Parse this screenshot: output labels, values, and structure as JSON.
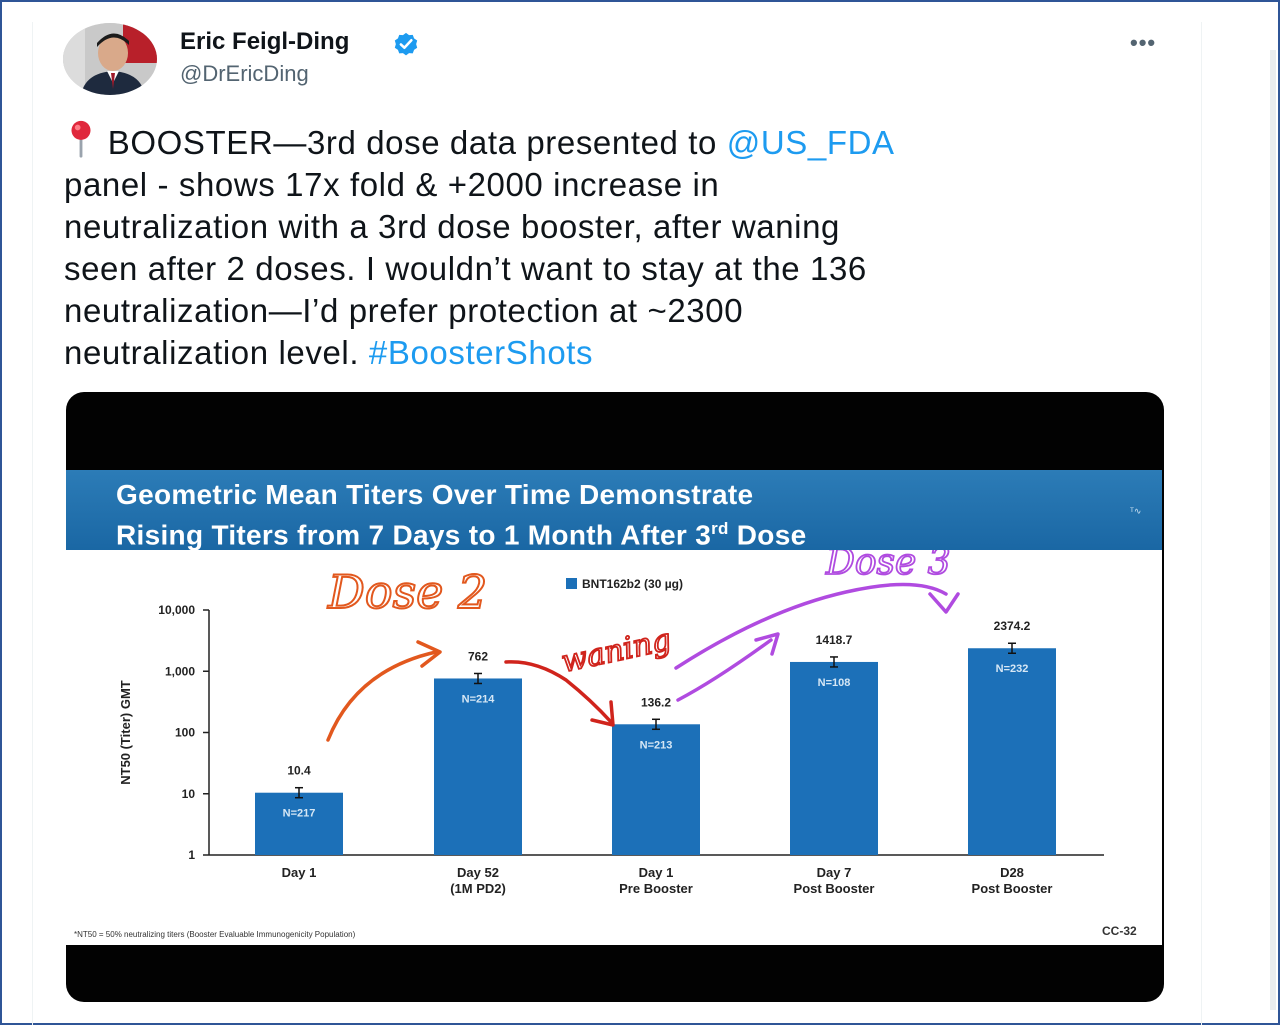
{
  "tweet": {
    "author_name": "Eric Feigl-Ding",
    "handle": "@DrEricDing",
    "more_label": "•••",
    "text_part1": "BOOSTER—3rd dose data presented to ",
    "mention": "@US_FDA",
    "text_part2": "\npanel - shows 17x fold & +2000 increase in\nneutralization with a 3rd dose booster, after waning\nseen after 2 doses. I wouldn’t want to stay at the 136\nneutralization—I’d prefer protection at ~2300\nneutralization level. ",
    "hashtag": "#BoosterShots"
  },
  "slide": {
    "title_line1": "Geometric Mean Titers Over Time Demonstrate",
    "title_line2_a": "Rising Titers from 7 Days to 1 Month After 3",
    "title_line2_sup": "rd",
    "title_line2_b": " Dose",
    "footnote": "*NT50 = 50% neutralizing titers (Booster Evaluable Immunogenicity Population)",
    "page_code": "CC-32",
    "annotations": {
      "dose2": "Dose 2",
      "waning": "waning",
      "dose3": "Dose 3"
    },
    "colors": {
      "bar": "#1c70b8",
      "header": "#1f6ca8",
      "annotation_orange": "#e2581e",
      "annotation_red": "#d0241c",
      "annotation_purple": "#b04be0"
    }
  },
  "chart_data": {
    "type": "bar",
    "ylabel": "NT50 (Titer) GMT",
    "yscale": "log",
    "ylim": [
      1,
      10000
    ],
    "yticks": [
      "1",
      "10",
      "100",
      "1,000",
      "10,000"
    ],
    "legend": "BNT162b2 (30 µg)",
    "categories": [
      [
        "Day 1"
      ],
      [
        "Day 52",
        "(1M PD2)"
      ],
      [
        "Day 1",
        "Pre Booster"
      ],
      [
        "Day 7",
        "Post Booster"
      ],
      [
        "D28",
        "Post Booster"
      ]
    ],
    "values": [
      10.4,
      762,
      136.2,
      1418.7,
      2374.2
    ],
    "value_labels": [
      "10.4",
      "762",
      "136.2",
      "1418.7",
      "2374.2"
    ],
    "n_labels": [
      "N=217",
      "N=214",
      "N=213",
      "N=108",
      "N=232"
    ]
  }
}
